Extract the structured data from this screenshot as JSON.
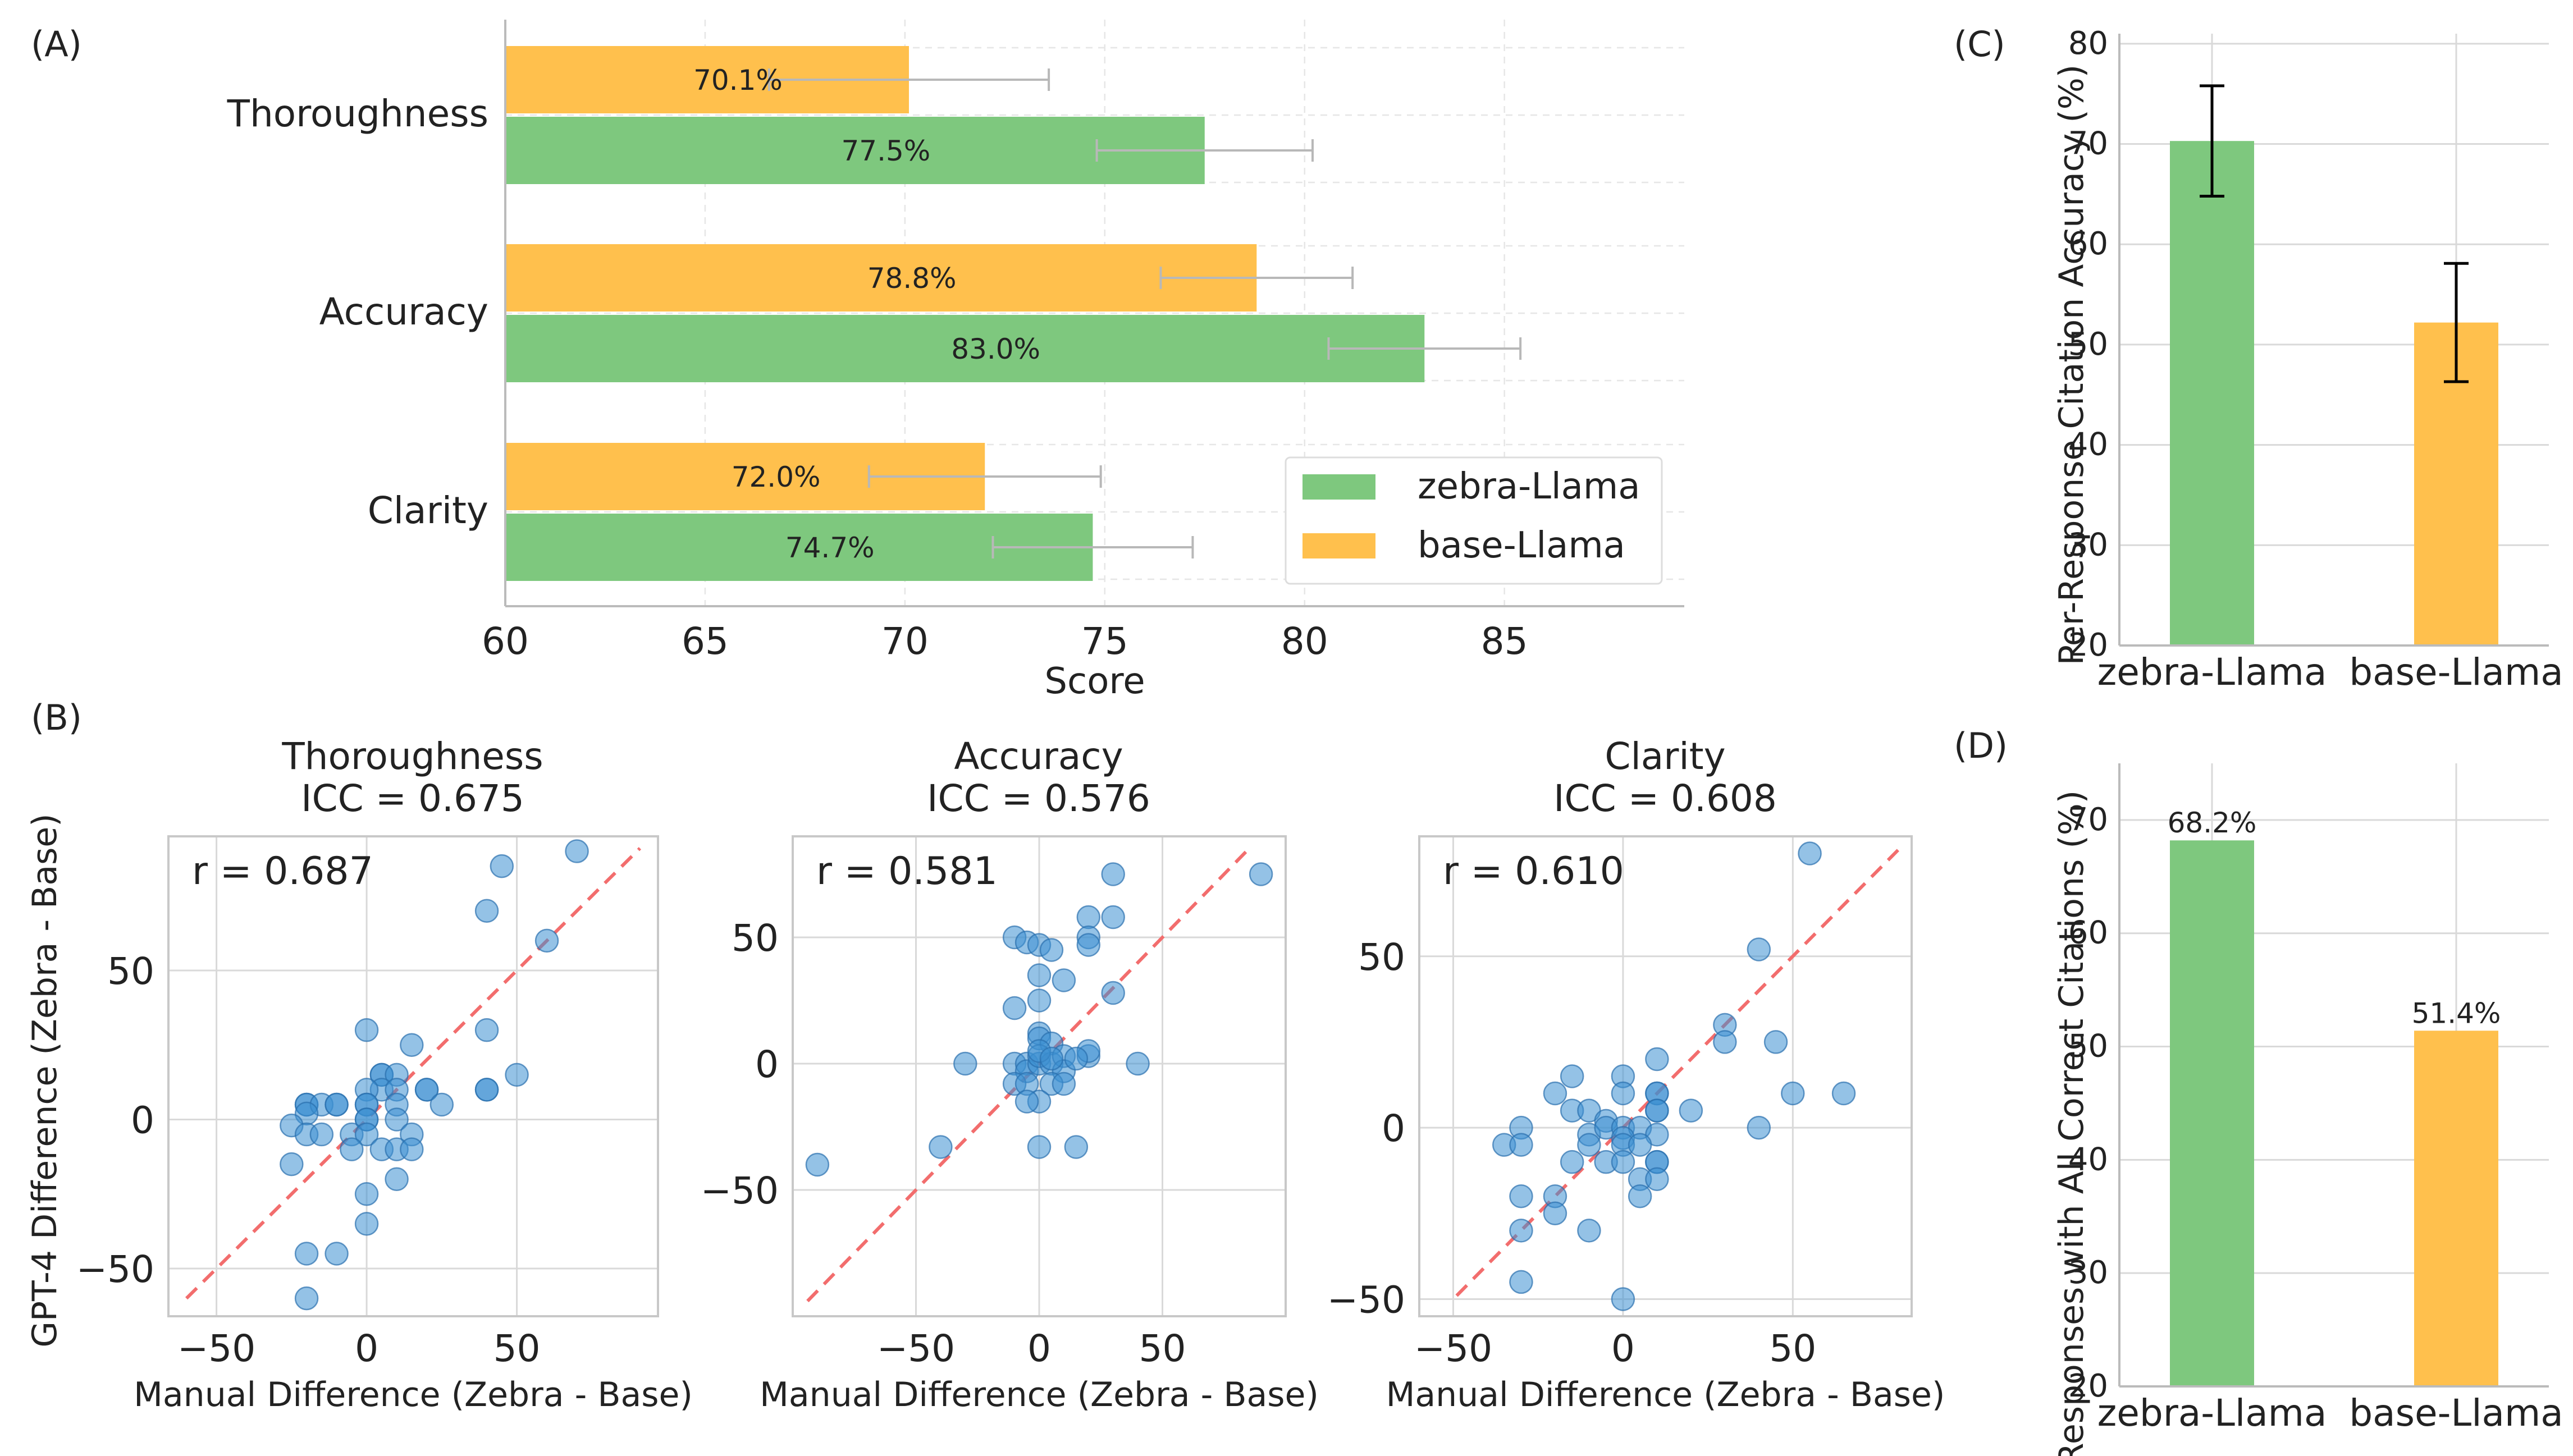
{
  "panel_labels": [
    "(A)",
    "(B)",
    "(C)",
    "(D)"
  ],
  "colors": {
    "zebra": "#7ec87e",
    "base": "#ffc04d",
    "point": "#3d8fd1",
    "fit_line": "#f26d6d",
    "errorbar_a": "#b8b8b8",
    "errorbar_c": "#000000"
  },
  "chart_data": [
    {
      "id": "A",
      "type": "bar",
      "orientation": "horizontal",
      "categories": [
        "Thoroughness",
        "Accuracy",
        "Clarity"
      ],
      "series": [
        {
          "name": "zebra-Llama",
          "values": [
            77.5,
            83.0,
            74.7
          ],
          "errors": [
            2.7,
            2.4,
            2.5
          ]
        },
        {
          "name": "base-Llama",
          "values": [
            70.1,
            78.8,
            72.0
          ],
          "errors": [
            3.5,
            2.4,
            2.9
          ]
        }
      ],
      "data_labels": {
        "zebra-Llama": [
          "77.5%",
          "83.0%",
          "74.7%"
        ],
        "base-Llama": [
          "70.1%",
          "78.8%",
          "72.0%"
        ]
      },
      "xlabel": "Score",
      "xlim": [
        60,
        89.5
      ],
      "xticks": [
        "60",
        "65",
        "70",
        "75",
        "80",
        "85"
      ],
      "legend": "bottom-right",
      "grid": true
    },
    {
      "id": "B1",
      "type": "scatter",
      "title": "Thoroughness",
      "subtitle": "ICC = 0.675",
      "annotation": "r = 0.687",
      "xlabel": "Manual Difference (Zebra - Base)",
      "ylabel": "GPT-4 Difference (Zebra - Base)",
      "xlim": [
        -66,
        97
      ],
      "ylim": [
        -66,
        95
      ],
      "xticks": [
        "−50",
        "0",
        "50"
      ],
      "yticks": [
        "−50",
        "0",
        "50"
      ],
      "identity_line": true,
      "points": [
        [
          70,
          90
        ],
        [
          45,
          85
        ],
        [
          40,
          70
        ],
        [
          60,
          60
        ],
        [
          50,
          15
        ],
        [
          40,
          30
        ],
        [
          40,
          10
        ],
        [
          40,
          10
        ],
        [
          0,
          30
        ],
        [
          15,
          25
        ],
        [
          5,
          15
        ],
        [
          5,
          15
        ],
        [
          10,
          15
        ],
        [
          20,
          10
        ],
        [
          20,
          10
        ],
        [
          5,
          10
        ],
        [
          0,
          10
        ],
        [
          10,
          10
        ],
        [
          25,
          5
        ],
        [
          -20,
          5
        ],
        [
          -20,
          5
        ],
        [
          -15,
          5
        ],
        [
          -10,
          5
        ],
        [
          -10,
          5
        ],
        [
          0,
          5
        ],
        [
          0,
          5
        ],
        [
          10,
          5
        ],
        [
          -20,
          2
        ],
        [
          -25,
          -2
        ],
        [
          0,
          0
        ],
        [
          0,
          0
        ],
        [
          10,
          0
        ],
        [
          15,
          -5
        ],
        [
          -20,
          -5
        ],
        [
          -15,
          -5
        ],
        [
          -5,
          -5
        ],
        [
          0,
          -5
        ],
        [
          -5,
          -10
        ],
        [
          5,
          -10
        ],
        [
          10,
          -10
        ],
        [
          15,
          -10
        ],
        [
          -25,
          -15
        ],
        [
          10,
          -20
        ],
        [
          0,
          -25
        ],
        [
          0,
          -35
        ],
        [
          -20,
          -45
        ],
        [
          -10,
          -45
        ],
        [
          -20,
          -60
        ]
      ]
    },
    {
      "id": "B2",
      "type": "scatter",
      "title": "Accuracy",
      "subtitle": "ICC = 0.576",
      "annotation": "r = 0.581",
      "xlabel": "Manual Difference (Zebra - Base)",
      "xlim": [
        -100,
        100
      ],
      "ylim": [
        -100,
        90
      ],
      "xticks": [
        "−50",
        "0",
        "50"
      ],
      "yticks": [
        "−50",
        "0",
        "50"
      ],
      "identity_line": true,
      "points": [
        [
          90,
          75
        ],
        [
          30,
          75
        ],
        [
          20,
          58
        ],
        [
          30,
          58
        ],
        [
          20,
          50
        ],
        [
          20,
          47
        ],
        [
          -10,
          50
        ],
        [
          -5,
          48
        ],
        [
          0,
          47
        ],
        [
          5,
          45
        ],
        [
          0,
          35
        ],
        [
          10,
          33
        ],
        [
          30,
          28
        ],
        [
          0,
          25
        ],
        [
          -10,
          22
        ],
        [
          0,
          12
        ],
        [
          0,
          10
        ],
        [
          5,
          8
        ],
        [
          -30,
          0
        ],
        [
          -10,
          0
        ],
        [
          -5,
          0
        ],
        [
          -5,
          -3
        ],
        [
          0,
          0
        ],
        [
          0,
          3
        ],
        [
          5,
          0
        ],
        [
          10,
          3
        ],
        [
          10,
          -3
        ],
        [
          20,
          3
        ],
        [
          20,
          5
        ],
        [
          15,
          2
        ],
        [
          40,
          0
        ],
        [
          -10,
          -8
        ],
        [
          -5,
          -8
        ],
        [
          5,
          -8
        ],
        [
          10,
          -8
        ],
        [
          0,
          -15
        ],
        [
          -5,
          -15
        ],
        [
          -40,
          -33
        ],
        [
          0,
          -33
        ],
        [
          15,
          -33
        ],
        [
          -90,
          -40
        ],
        [
          0,
          5
        ],
        [
          5,
          2
        ]
      ]
    },
    {
      "id": "B3",
      "type": "scatter",
      "title": "Clarity",
      "subtitle": "ICC = 0.608",
      "annotation": "r = 0.610",
      "xlabel": "Manual Difference (Zebra - Base)",
      "xlim": [
        -60,
        85
      ],
      "ylim": [
        -55,
        85
      ],
      "xticks": [
        "−50",
        "0",
        "50"
      ],
      "yticks": [
        "−50",
        "0",
        "50"
      ],
      "identity_line": true,
      "points": [
        [
          55,
          80
        ],
        [
          40,
          52
        ],
        [
          30,
          30
        ],
        [
          45,
          25
        ],
        [
          30,
          25
        ],
        [
          10,
          20
        ],
        [
          -15,
          15
        ],
        [
          0,
          15
        ],
        [
          -20,
          10
        ],
        [
          0,
          10
        ],
        [
          10,
          10
        ],
        [
          10,
          10
        ],
        [
          50,
          10
        ],
        [
          65,
          10
        ],
        [
          -15,
          5
        ],
        [
          -10,
          5
        ],
        [
          10,
          5
        ],
        [
          10,
          5
        ],
        [
          20,
          5
        ],
        [
          -5,
          2
        ],
        [
          -30,
          0
        ],
        [
          -10,
          -2
        ],
        [
          -5,
          0
        ],
        [
          0,
          0
        ],
        [
          5,
          0
        ],
        [
          10,
          -2
        ],
        [
          40,
          0
        ],
        [
          0,
          -3
        ],
        [
          -35,
          -5
        ],
        [
          -30,
          -5
        ],
        [
          -10,
          -5
        ],
        [
          0,
          -5
        ],
        [
          5,
          -5
        ],
        [
          -15,
          -10
        ],
        [
          -5,
          -10
        ],
        [
          0,
          -10
        ],
        [
          10,
          -10
        ],
        [
          10,
          -10
        ],
        [
          5,
          -15
        ],
        [
          10,
          -15
        ],
        [
          -30,
          -20
        ],
        [
          -20,
          -20
        ],
        [
          5,
          -20
        ],
        [
          -20,
          -25
        ],
        [
          -10,
          -30
        ],
        [
          -30,
          -30
        ],
        [
          -30,
          -45
        ],
        [
          0,
          -50
        ]
      ]
    },
    {
      "id": "C",
      "type": "bar",
      "categories": [
        "zebra-Llama",
        "base-Llama"
      ],
      "values": [
        70.3,
        52.2
      ],
      "errors": [
        5.5,
        5.9
      ],
      "ylabel": "Per-Response Citation Accuracy (%)",
      "ylim": [
        20,
        81
      ],
      "yticks": [
        "20",
        "30",
        "40",
        "50",
        "60",
        "70",
        "80"
      ],
      "grid": true
    },
    {
      "id": "D",
      "type": "bar",
      "categories": [
        "zebra-Llama",
        "base-Llama"
      ],
      "values": [
        68.2,
        51.4
      ],
      "data_labels": [
        "68.2%",
        "51.4%"
      ],
      "ylabel": "Responses with All Correct Citations (%)",
      "ylim": [
        20,
        75
      ],
      "yticks": [
        "20",
        "30",
        "40",
        "50",
        "60",
        "70"
      ],
      "grid": true
    }
  ]
}
